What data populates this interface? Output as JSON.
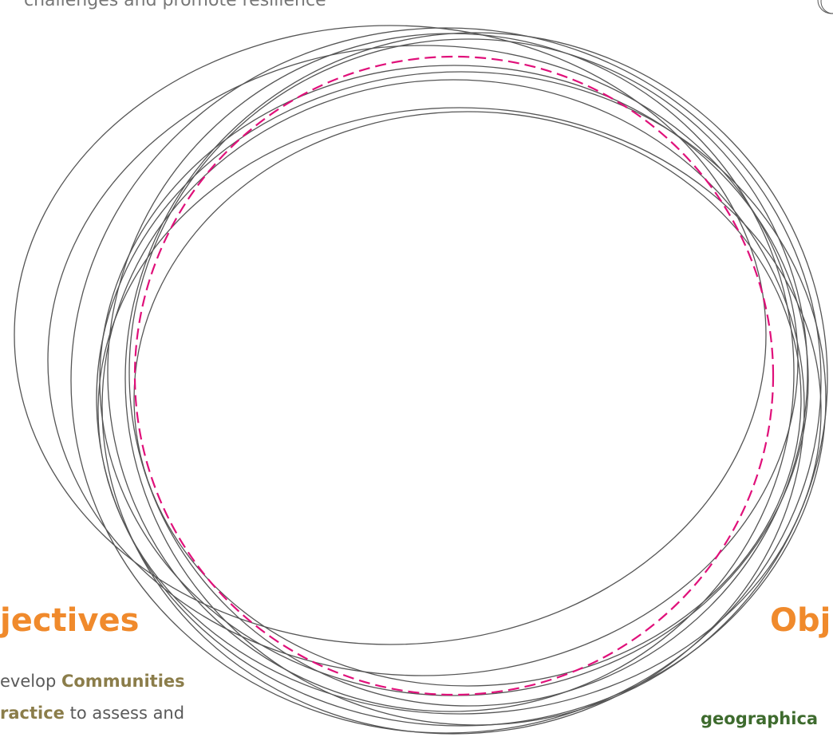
{
  "top_text": "challenges and promote resilience",
  "left_section": {
    "heading": "jectives",
    "line1_prefix": "evelop ",
    "line1_bold": "Communities",
    "line2_bold": "ractice",
    "line2_suffix": " to assess and"
  },
  "right_section": {
    "heading": "Obj",
    "line_bold": "geographica"
  },
  "colors": {
    "heading": "#f08a2c",
    "olive_bold": "#8b7d4a",
    "green_bold": "#3e6b2e",
    "ring_stroke": "#555555",
    "dashed_circle": "#e0107a",
    "body_text": "#5a5a5a"
  }
}
